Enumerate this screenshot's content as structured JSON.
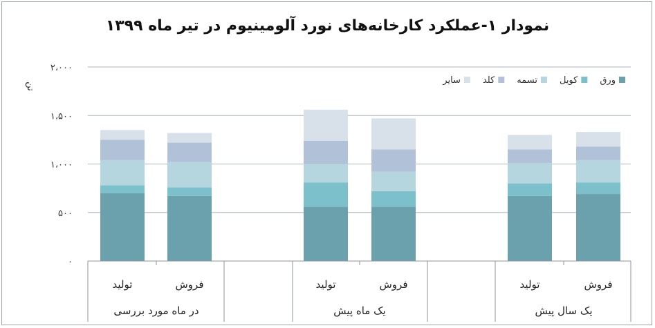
{
  "chart_data": {
    "type": "bar",
    "stacked": true,
    "title": "نمودار ۱-عملکرد کارخانه‌های نورد آلومینیوم در تیر ماه ۱۳۹۹",
    "ylabel": "تن",
    "ylim": [
      0,
      2000
    ],
    "yticks": [
      {
        "value": 0,
        "label": "۰"
      },
      {
        "value": 500,
        "label": "۵۰۰"
      },
      {
        "value": 1000,
        "label": "۱،۰۰۰"
      },
      {
        "value": 1500,
        "label": "۱،۵۰۰"
      },
      {
        "value": 2000,
        "label": "۲،۰۰۰"
      }
    ],
    "grid": true,
    "legend_position": "top-right",
    "groups": [
      {
        "label": "در ماه مورد بررسی",
        "bars": [
          "تولید",
          "فروش"
        ]
      },
      {
        "label": "یک ماه پیش",
        "bars": [
          "تولید",
          "فروش"
        ]
      },
      {
        "label": "یک سال پیش",
        "bars": [
          "تولید",
          "فروش"
        ]
      }
    ],
    "categories": [
      "تولید",
      "فروش",
      "تولید",
      "فروش",
      "تولید",
      "فروش"
    ],
    "series": [
      {
        "name": "ورق",
        "color": "#6ba1ad",
        "values": [
          700,
          670,
          560,
          560,
          670,
          690
        ]
      },
      {
        "name": "کویل",
        "color": "#7cc0cc",
        "values": [
          80,
          90,
          250,
          160,
          130,
          120
        ]
      },
      {
        "name": "تسمه",
        "color": "#b5d6de",
        "values": [
          260,
          260,
          190,
          200,
          210,
          230
        ]
      },
      {
        "name": "کلد",
        "color": "#b0c1d8",
        "values": [
          210,
          200,
          240,
          230,
          140,
          140
        ]
      },
      {
        "name": "سایر",
        "color": "#d8e1ea",
        "values": [
          100,
          100,
          320,
          320,
          150,
          150
        ]
      }
    ]
  }
}
